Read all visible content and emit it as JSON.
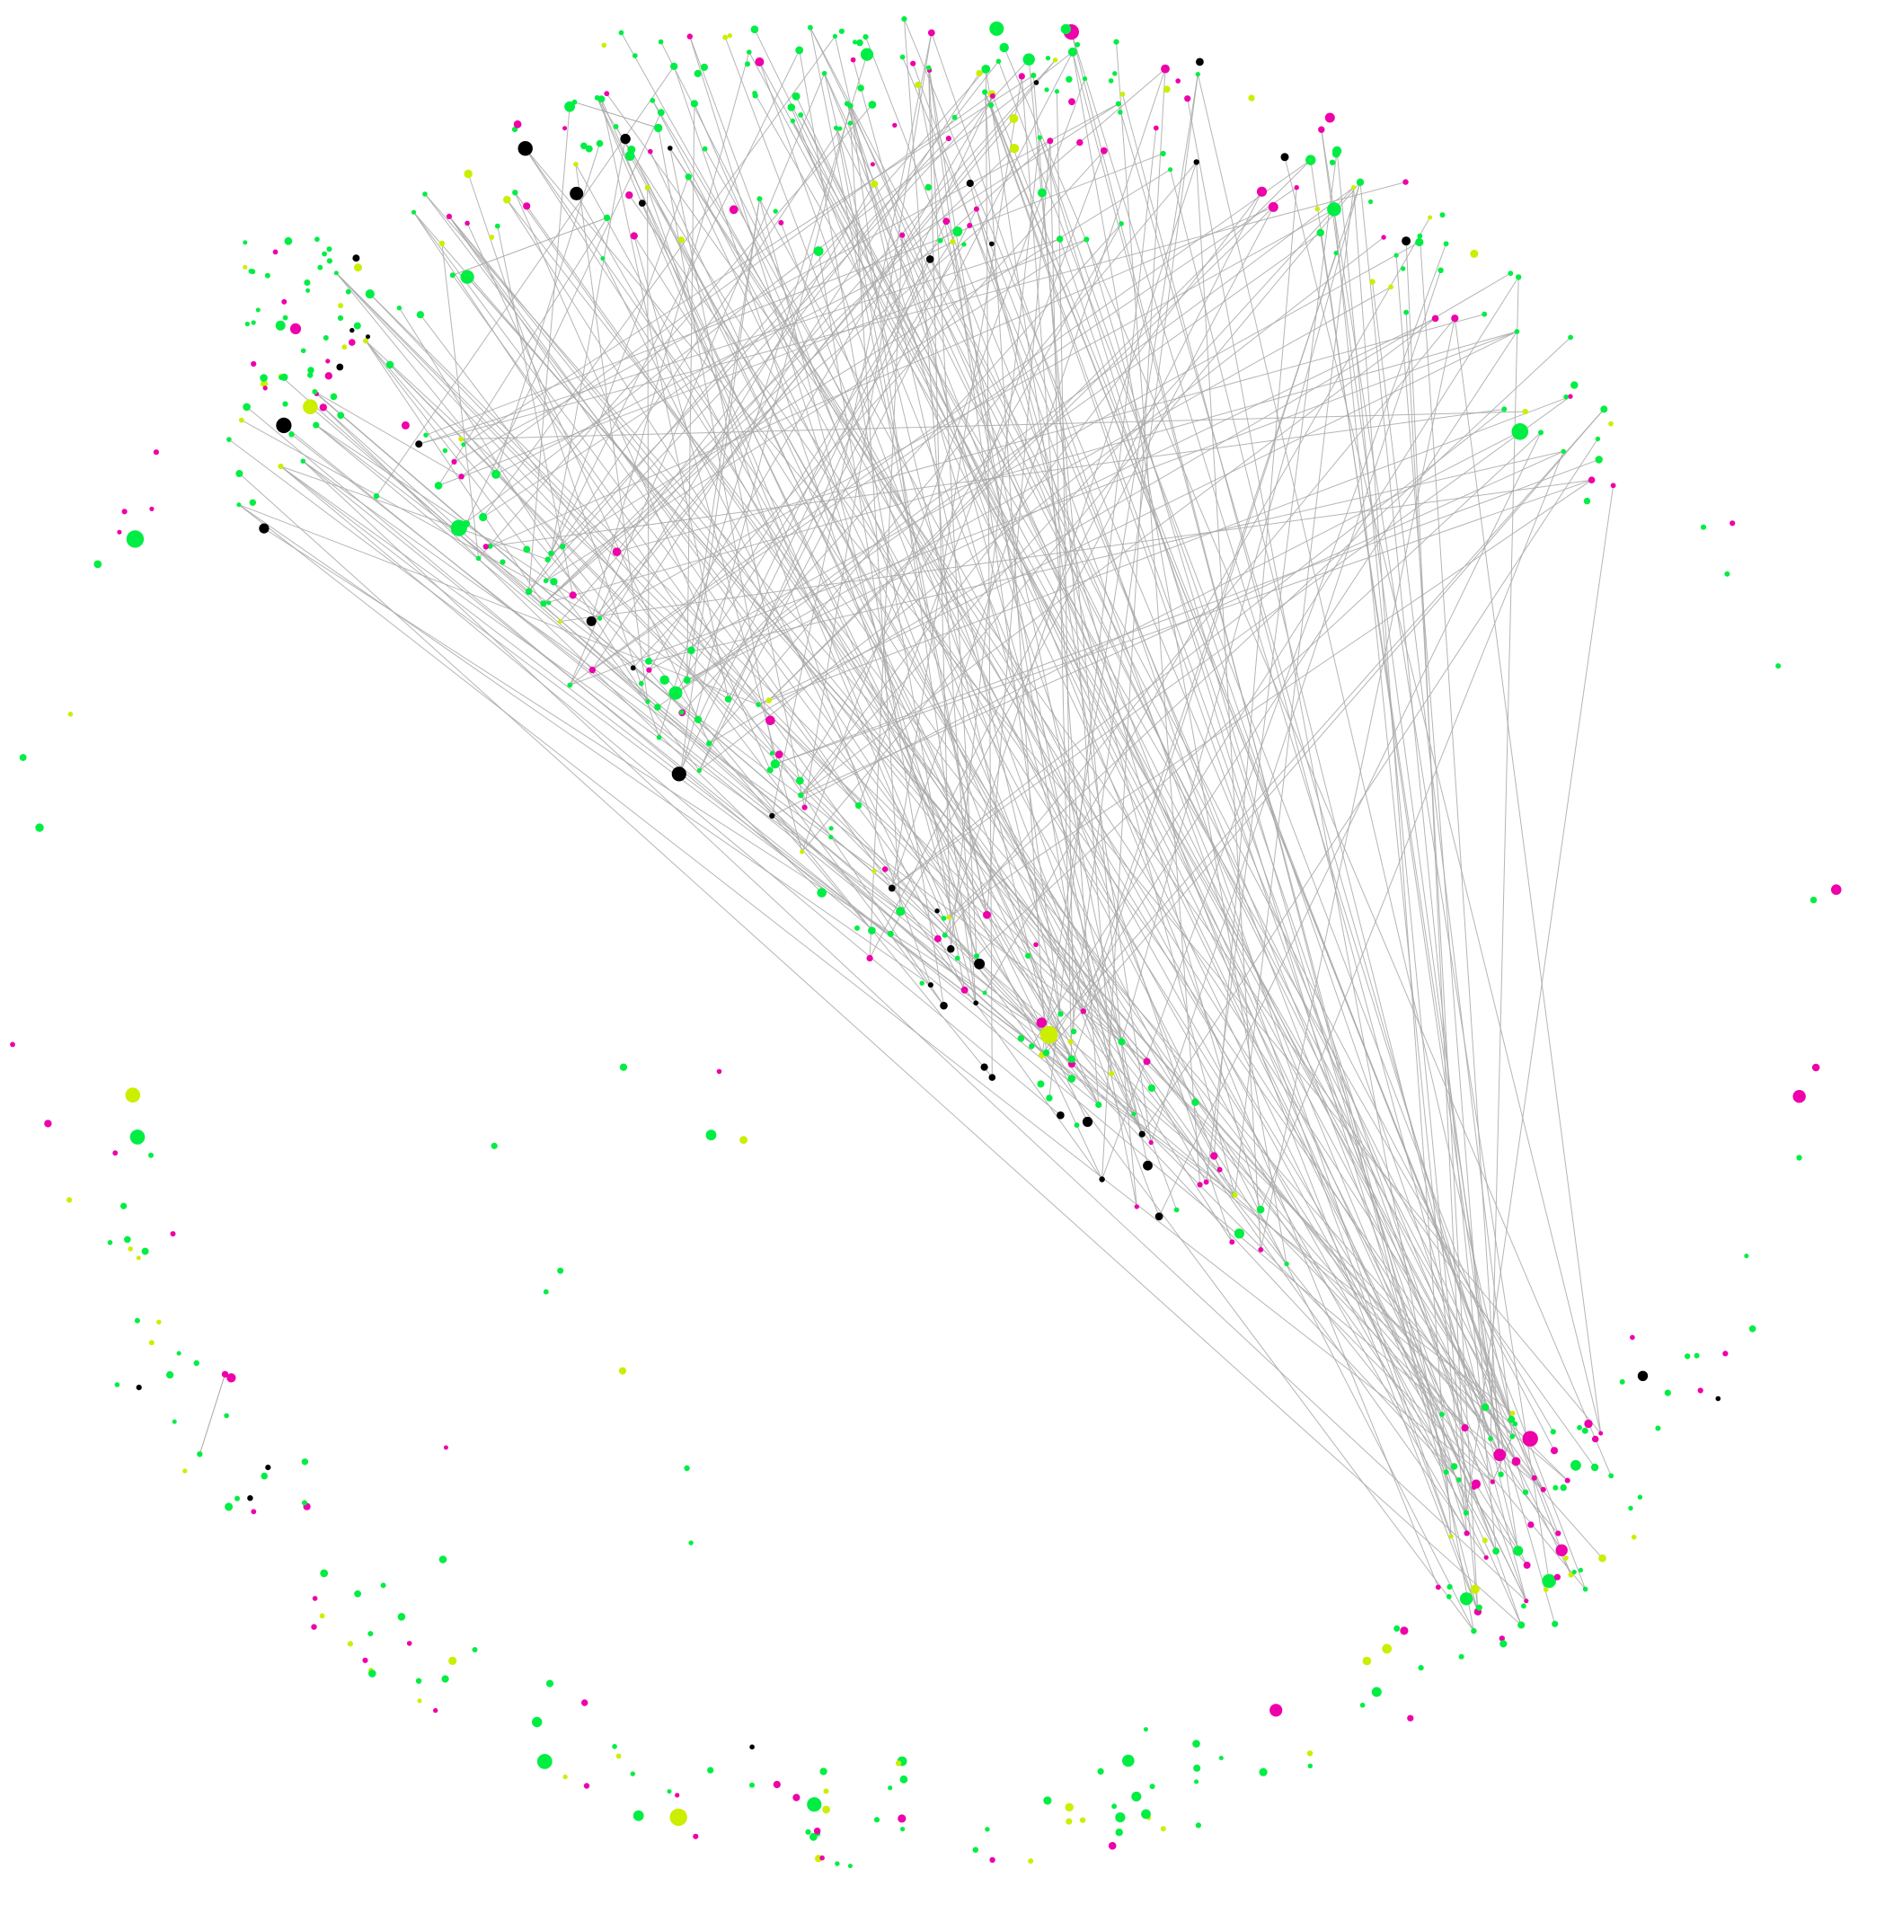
{
  "graph": {
    "background": "#ffffff",
    "edge_color": "#a8a8a8",
    "node_categories": [
      {
        "key": "green",
        "color": "#00ee44"
      },
      {
        "key": "magenta",
        "color": "#ee00aa"
      },
      {
        "key": "lime",
        "color": "#ccee00"
      },
      {
        "key": "black",
        "color": "#000000"
      }
    ],
    "approx_counts": {
      "nodes": 560,
      "edges": 320
    }
  }
}
